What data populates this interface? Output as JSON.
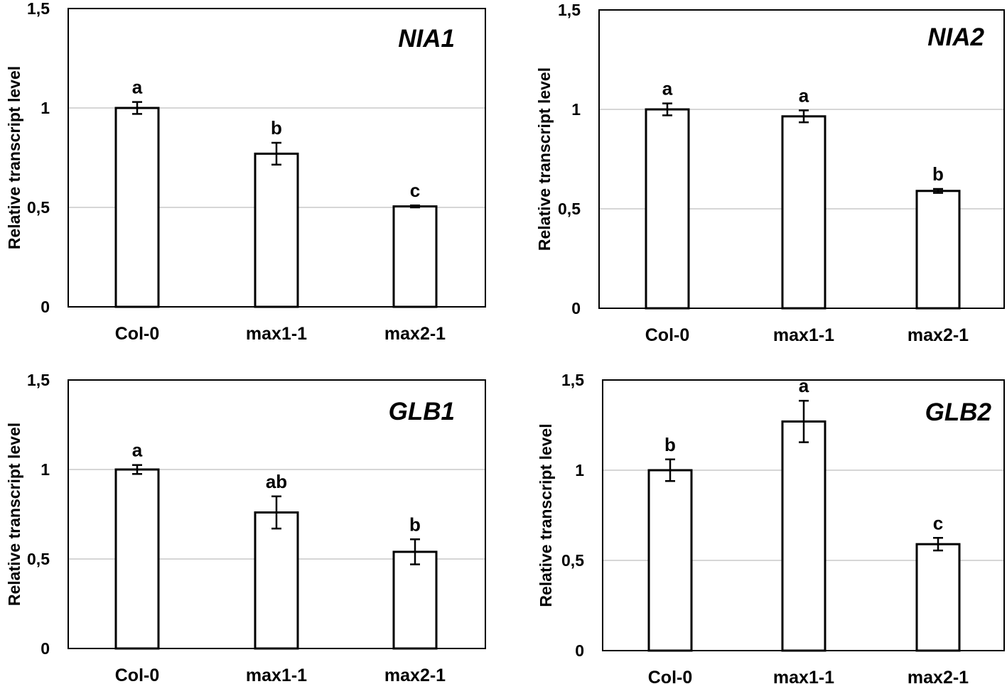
{
  "chart_data": [
    {
      "type": "bar",
      "title": "NIA1",
      "ylabel": "Relative transcript level",
      "xlabel": "",
      "categories": [
        "Col-0",
        "max1-1",
        "max2-1"
      ],
      "values": [
        1.0,
        0.77,
        0.505
      ],
      "errors": [
        0.03,
        0.055,
        0.005
      ],
      "significance": [
        "a",
        "b",
        "c"
      ],
      "ylim": [
        0,
        1.5
      ],
      "yticks": [
        "0",
        "0,5",
        "1",
        "1,5"
      ],
      "grid": true
    },
    {
      "type": "bar",
      "title": "NIA2",
      "ylabel": "Relative transcript level",
      "xlabel": "",
      "categories": [
        "Col-0",
        "max1-1",
        "max2-1"
      ],
      "values": [
        1.0,
        0.965,
        0.59
      ],
      "errors": [
        0.03,
        0.03,
        0.01
      ],
      "significance": [
        "a",
        "a",
        "b"
      ],
      "ylim": [
        0,
        1.5
      ],
      "yticks": [
        "0",
        "0,5",
        "1",
        "1,5"
      ],
      "grid": true
    },
    {
      "type": "bar",
      "title": "GLB1",
      "ylabel": "Relative transcript level",
      "xlabel": "",
      "categories": [
        "Col-0",
        "max1-1",
        "max2-1"
      ],
      "values": [
        1.0,
        0.76,
        0.54
      ],
      "errors": [
        0.025,
        0.09,
        0.07
      ],
      "significance": [
        "a",
        "ab",
        "b"
      ],
      "ylim": [
        0,
        1.5
      ],
      "yticks": [
        "0",
        "0,5",
        "1",
        "1,5"
      ],
      "grid": true
    },
    {
      "type": "bar",
      "title": "GLB2",
      "ylabel": "Relative transcript level",
      "xlabel": "",
      "categories": [
        "Col-0",
        "max1-1",
        "max2-1"
      ],
      "values": [
        1.0,
        1.27,
        0.59
      ],
      "errors": [
        0.06,
        0.115,
        0.035
      ],
      "significance": [
        "b",
        "a",
        "c"
      ],
      "ylim": [
        0,
        1.5
      ],
      "yticks": [
        "0",
        "0,5",
        "1",
        "1,5"
      ],
      "grid": true
    }
  ]
}
